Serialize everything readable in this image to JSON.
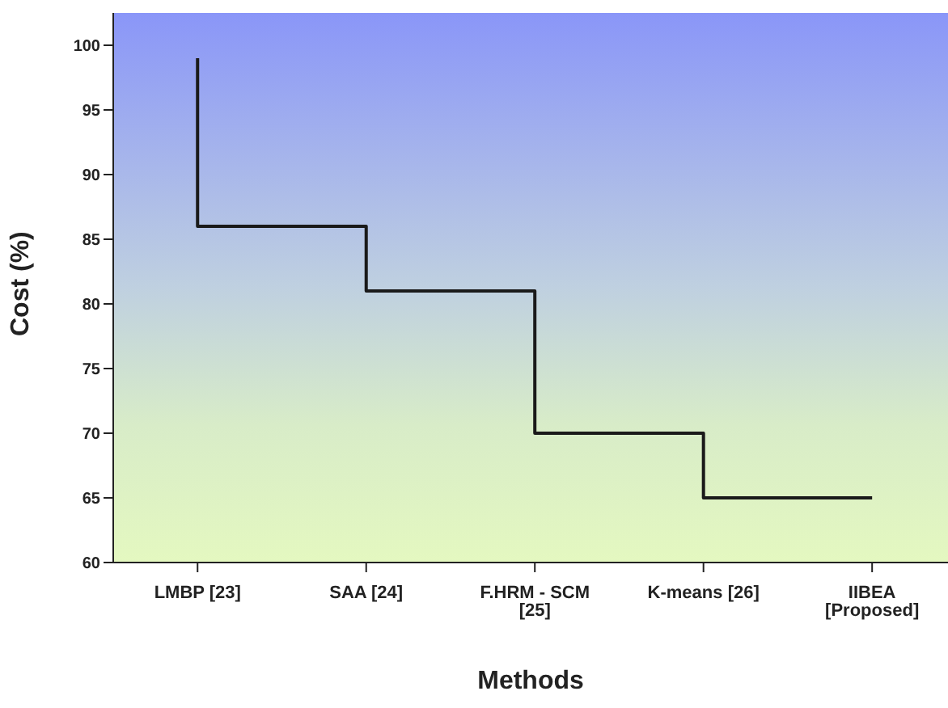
{
  "chart_data": {
    "type": "step",
    "xlabel": "Methods",
    "ylabel": "Cost (%)",
    "categories": [
      "LMBP [23]",
      "SAA [24]",
      "F.HRM - SCM [25]",
      "K-means [26]",
      "IIBEA [Proposed]"
    ],
    "series": [
      {
        "color": "#1a1a1a",
        "values": [
          99,
          86,
          81,
          70,
          65
        ]
      }
    ],
    "ylim": [
      60,
      102.5
    ],
    "yticks": [
      60,
      65,
      70,
      75,
      80,
      85,
      90,
      95,
      100
    ],
    "grid": false,
    "marker": "none",
    "line_style": "solid"
  }
}
